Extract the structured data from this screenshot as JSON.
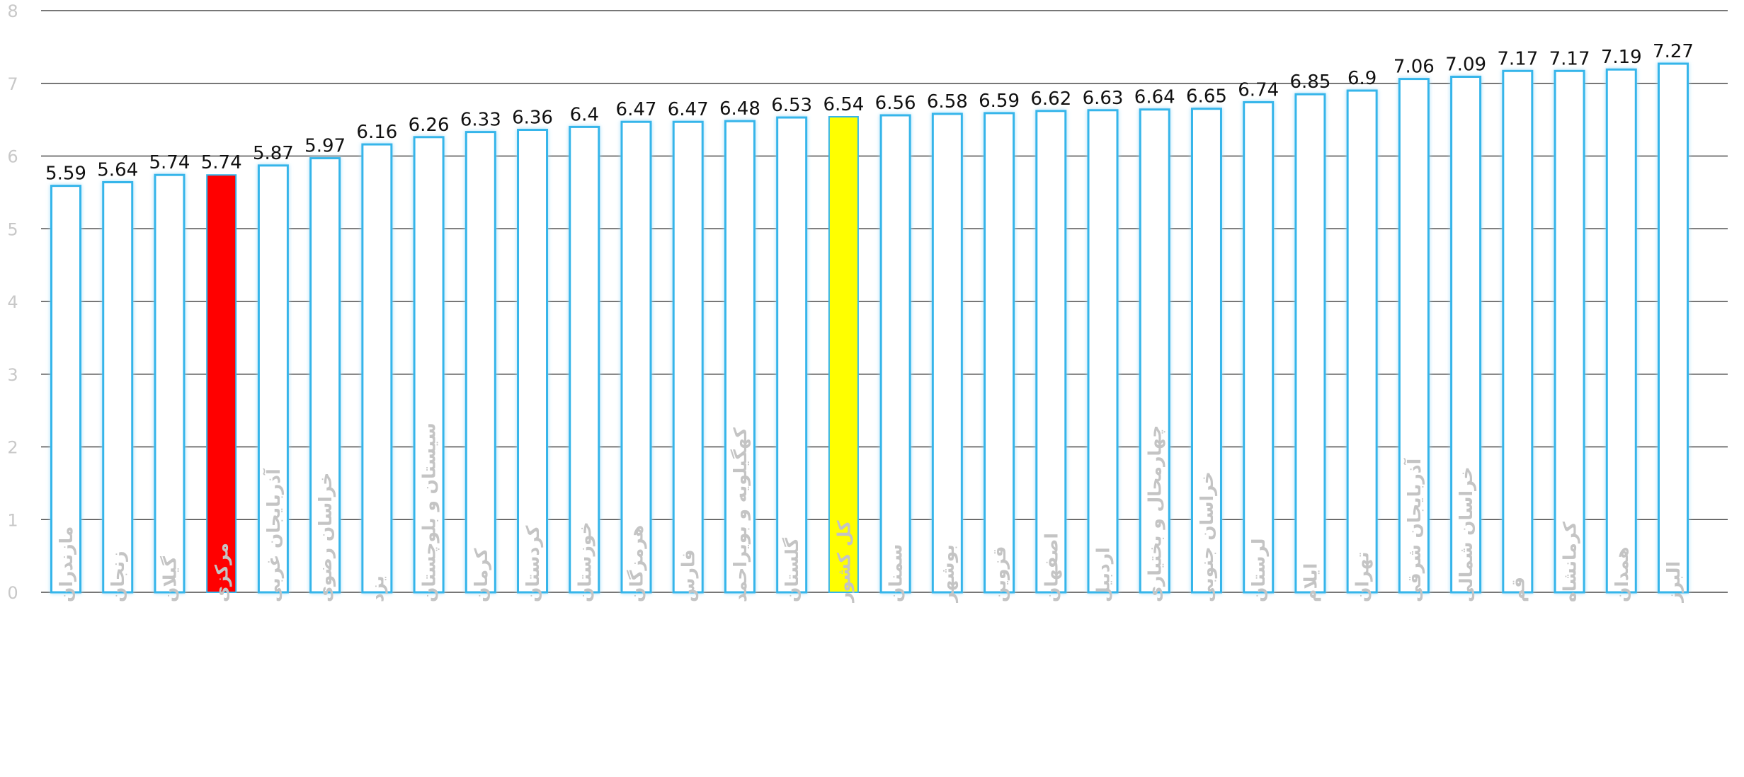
{
  "chart_data": {
    "type": "bar",
    "title": "",
    "xlabel": "",
    "ylabel": "",
    "ylim": [
      0,
      8
    ],
    "yticks": [
      "0",
      "1",
      "2",
      "3",
      "4",
      "5",
      "6",
      "7",
      "8"
    ],
    "grid": true,
    "categories": [
      "مازندران",
      "زنجان",
      "گیلان",
      "مرکزی",
      "آذربایجان غربی",
      "خراسان رضوی",
      "یزد",
      "سیستان و بلوچستان",
      "کرمان",
      "کردستان",
      "خوزستان",
      "هرمزگان",
      "فارس",
      "کهگیلویه و بویراحمد",
      "گلستان",
      "کل کشور",
      "سمنان",
      "بوشهر",
      "قزوین",
      "اصفهان",
      "اردبیل",
      "چهارمحال و بختیاری",
      "خراسان جنوبی",
      "لرستان",
      "ایلام",
      "تهران",
      "آذربایجان شرقی",
      "خراسان شمالی",
      "قم",
      "کرمانشاه",
      "همدان",
      "البرز"
    ],
    "values": [
      5.59,
      5.64,
      5.74,
      5.74,
      5.87,
      5.97,
      6.16,
      6.26,
      6.33,
      6.36,
      6.4,
      6.47,
      6.47,
      6.48,
      6.53,
      6.54,
      6.56,
      6.58,
      6.59,
      6.62,
      6.63,
      6.64,
      6.65,
      6.74,
      6.85,
      6.9,
      7.06,
      7.09,
      7.17,
      7.17,
      7.19,
      7.27
    ],
    "labels": [
      "5.59",
      "5.64",
      "5.74",
      "5.74",
      "5.87",
      "5.97",
      "6.16",
      "6.26",
      "6.33",
      "6.36",
      "6.4",
      "6.47",
      "6.47",
      "6.48",
      "6.53",
      "6.54",
      "6.56",
      "6.58",
      "6.59",
      "6.62",
      "6.63",
      "6.64",
      "6.65",
      "6.74",
      "6.85",
      "6.9",
      "7.06",
      "7.09",
      "7.17",
      "7.17",
      "7.19",
      "7.27"
    ],
    "colors": {
      "default_fill": "#ffffff",
      "default_stroke": "#35b5ea",
      "glow": "#bfe9fb",
      "highlight_province": "#ff0000",
      "highlight_country": "#ffff00",
      "gridline": "#4a4a4a",
      "tick_text": "#c8c8c8",
      "category_text": "#c4c4c4",
      "label_text": "#111111"
    },
    "highlights": {
      "مرکزی": "highlight_province",
      "کل کشور": "highlight_country"
    }
  }
}
